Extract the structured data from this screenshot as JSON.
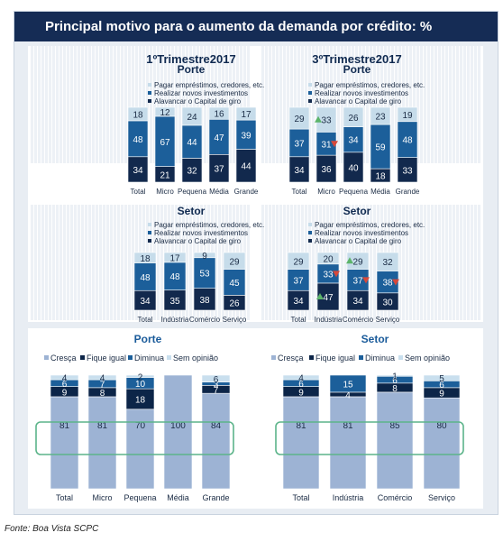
{
  "title": "Principal motivo para o aumento da demanda por crédito: %",
  "source": "Fonte: Boa Vista SCPC",
  "top_headers": {
    "left": "1ºTrimestre2017",
    "right": "3ºTrimestre2017"
  },
  "colors": {
    "pay": "#c6dcea",
    "invest": "#1c5f9a",
    "capital": "#12294d",
    "cresca": "#9db3d4",
    "fique": "#0c2548",
    "diminua": "#1c5f9a",
    "sem": "#c9dfee",
    "title_bg": "#152c55",
    "highlight": "#5cb48a"
  },
  "chart_data": [
    {
      "type": "bar",
      "stacked": true,
      "horizontal_100pct": true,
      "period": "1ºTrimestre2017",
      "title": "Porte",
      "categories": [
        "Total",
        "Micro",
        "Pequena",
        "Média",
        "Grande"
      ],
      "legend": [
        "Pagar empréstimos, credores, etc.",
        "Realizar novos investimentos",
        "Alavancar o Capital de giro"
      ],
      "series": [
        {
          "name": "Alavancar o Capital de giro",
          "values": [
            34,
            21,
            32,
            37,
            44
          ]
        },
        {
          "name": "Realizar novos investimentos",
          "values": [
            48,
            67,
            44,
            47,
            39
          ]
        },
        {
          "name": "Pagar empréstimos, credores, etc.",
          "values": [
            18,
            12,
            24,
            16,
            17
          ]
        }
      ],
      "markers": []
    },
    {
      "type": "bar",
      "stacked": true,
      "period": "3ºTrimestre2017",
      "title": "Porte",
      "categories": [
        "Total",
        "Micro",
        "Pequena",
        "Média",
        "Grande"
      ],
      "legend": [
        "Pagar empréstimos, credores, etc.",
        "Realizar novos investimentos",
        "Alavancar o Capital de giro"
      ],
      "series": [
        {
          "name": "Alavancar o Capital de giro",
          "values": [
            34,
            36,
            40,
            18,
            33
          ]
        },
        {
          "name": "Realizar novos investimentos",
          "values": [
            37,
            31,
            34,
            59,
            48
          ]
        },
        {
          "name": "Pagar empréstimos, credores, etc.",
          "values": [
            29,
            33,
            26,
            23,
            19
          ]
        }
      ],
      "markers": [
        {
          "category": "Micro",
          "series": "Pagar empréstimos, credores, etc.",
          "direction": "up"
        },
        {
          "category": "Micro",
          "series": "Realizar novos investimentos",
          "direction": "down"
        }
      ]
    },
    {
      "type": "bar",
      "stacked": true,
      "period": "1ºTrimestre2017",
      "title": "Setor",
      "categories": [
        "Total",
        "Indústria",
        "Comércio",
        "Serviço"
      ],
      "legend": [
        "Pagar empréstimos, credores, etc.",
        "Realizar novos investimentos",
        "Alavancar o Capital de giro"
      ],
      "series": [
        {
          "name": "Alavancar o Capital de giro",
          "values": [
            34,
            35,
            38,
            26
          ]
        },
        {
          "name": "Realizar novos investimentos",
          "values": [
            48,
            48,
            53,
            45
          ]
        },
        {
          "name": "Pagar empréstimos, credores, etc.",
          "values": [
            18,
            17,
            9,
            29
          ]
        }
      ],
      "markers": []
    },
    {
      "type": "bar",
      "stacked": true,
      "period": "3ºTrimestre2017",
      "title": "Setor",
      "categories": [
        "Total",
        "Indústria",
        "Comércio",
        "Serviço"
      ],
      "legend": [
        "Pagar empréstimos, credores, etc.",
        "Realizar novos investimentos",
        "Alavancar o Capital de giro"
      ],
      "series": [
        {
          "name": "Alavancar o Capital de giro",
          "values": [
            34,
            47,
            34,
            30
          ]
        },
        {
          "name": "Realizar novos investimentos",
          "values": [
            37,
            33,
            37,
            38
          ]
        },
        {
          "name": "Pagar empréstimos, credores, etc.",
          "values": [
            29,
            20,
            29,
            32
          ]
        }
      ],
      "markers": [
        {
          "category": "Indústria",
          "series": "Realizar novos investimentos",
          "direction": "down"
        },
        {
          "category": "Indústria",
          "series": "Alavancar o Capital de giro",
          "direction": "up"
        },
        {
          "category": "Comércio",
          "series": "Pagar empréstimos, credores, etc.",
          "direction": "up"
        },
        {
          "category": "Comércio",
          "series": "Realizar novos investimentos",
          "direction": "down"
        },
        {
          "category": "Serviço",
          "series": "Realizar novos investimentos",
          "direction": "down"
        }
      ]
    },
    {
      "type": "bar",
      "stacked": true,
      "title": "Porte",
      "categories": [
        "Total",
        "Micro",
        "Pequena",
        "Média",
        "Grande"
      ],
      "legend": [
        "Cresça",
        "Fique igual",
        "Diminua",
        "Sem opinião"
      ],
      "series": [
        {
          "name": "Cresça",
          "values": [
            81,
            81,
            70,
            100,
            84
          ]
        },
        {
          "name": "Fique igual",
          "values": [
            9,
            8,
            18,
            null,
            7
          ]
        },
        {
          "name": "Diminua",
          "values": [
            6,
            7,
            10,
            null,
            3
          ]
        },
        {
          "name": "Sem opinião",
          "values": [
            4,
            4,
            2,
            null,
            6
          ]
        }
      ]
    },
    {
      "type": "bar",
      "stacked": true,
      "title": "Setor",
      "categories": [
        "Total",
        "Indústria",
        "Comércio",
        "Serviço"
      ],
      "legend": [
        "Cresça",
        "Fique igual",
        "Diminua",
        "Sem opinião"
      ],
      "series": [
        {
          "name": "Cresça",
          "values": [
            81,
            81,
            85,
            80
          ]
        },
        {
          "name": "Fique igual",
          "values": [
            9,
            4,
            8,
            9
          ]
        },
        {
          "name": "Diminua",
          "values": [
            6,
            15,
            6,
            6
          ]
        },
        {
          "name": "Sem opinião",
          "values": [
            4,
            null,
            1,
            5
          ]
        }
      ]
    }
  ]
}
